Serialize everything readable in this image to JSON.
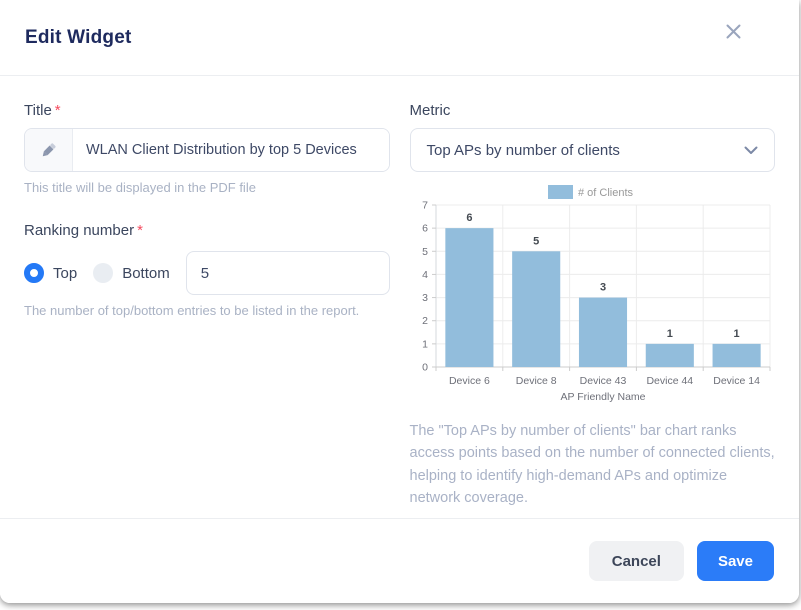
{
  "modal": {
    "title": "Edit Widget"
  },
  "colors": {
    "primary": "#2b7cf8",
    "bar": "#92bddc",
    "radio_selected": "#2479f6",
    "required": "#f54a5e"
  },
  "form": {
    "title_field": {
      "label": "Title",
      "required_marker": "*",
      "value": "WLAN Client Distribution by top 5 Devices",
      "helper": "This title will be displayed in the PDF file"
    },
    "ranking": {
      "label": "Ranking number",
      "required_marker": "*",
      "options": [
        {
          "label": "Top",
          "selected": true
        },
        {
          "label": "Bottom",
          "selected": false
        }
      ],
      "value": "5",
      "helper": "The number of top/bottom entries to be listed in the report."
    },
    "metric": {
      "label": "Metric",
      "selected_value": "Top APs by number of clients"
    }
  },
  "chart_data": {
    "type": "bar",
    "title": "",
    "categories": [
      "Device 6",
      "Device 8",
      "Device 43",
      "Device 44",
      "Device 14"
    ],
    "series": [
      {
        "name": "# of Clients",
        "values": [
          6,
          5,
          3,
          1,
          1
        ]
      }
    ],
    "xlabel": "AP Friendly Name",
    "ylabel": "",
    "ylim": [
      0,
      7
    ],
    "grid": true,
    "legend_position": "top",
    "bar_color": "#92bddc"
  },
  "description": "The \"Top APs by number of clients\" bar chart ranks access points based on the number of connected clients, helping to identify high-demand APs and optimize network coverage.",
  "footer": {
    "cancel_label": "Cancel",
    "save_label": "Save"
  }
}
